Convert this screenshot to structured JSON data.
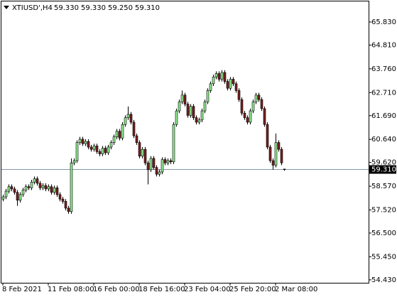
{
  "chart_data": {
    "type": "candlestick",
    "symbol": "XTIUSD',H4",
    "header_ohlc": [
      {
        "value": 59.33,
        "label": "59.330"
      },
      {
        "value": 59.33,
        "label": "59.330"
      },
      {
        "value": 59.25,
        "label": "59.250"
      },
      {
        "value": 59.31,
        "label": "59.310"
      }
    ],
    "current_price": {
      "value": 59.31,
      "label": "59.310"
    },
    "categories": [
      "8 Feb 2021",
      null,
      null,
      null,
      null,
      null,
      null,
      null,
      null,
      null,
      null,
      null,
      null,
      null,
      null,
      null,
      "11 Feb 08:00",
      null,
      null,
      null,
      null,
      null,
      null,
      null,
      null,
      null,
      null,
      null,
      null,
      null,
      null,
      null,
      "16 Feb 00:00",
      null,
      null,
      null,
      null,
      null,
      null,
      null,
      null,
      null,
      null,
      null,
      null,
      null,
      null,
      null,
      "18 Feb 16:00",
      null,
      null,
      null,
      null,
      null,
      null,
      null,
      null,
      null,
      null,
      null,
      null,
      null,
      null,
      null,
      "23 Feb 04:00",
      null,
      null,
      null,
      null,
      null,
      null,
      null,
      null,
      null,
      null,
      null,
      null,
      null,
      null,
      null,
      "25 Feb 20:00",
      null,
      null,
      null,
      null,
      null,
      null,
      null,
      null,
      null,
      null,
      null,
      null,
      null,
      null,
      null,
      "2 Mar 08:00",
      null,
      null,
      null
    ],
    "open": [
      58.0,
      58.1,
      58.35,
      58.55,
      58.45,
      58.3,
      57.95,
      58.2,
      58.4,
      58.55,
      58.5,
      58.75,
      58.9,
      58.7,
      58.5,
      58.6,
      58.45,
      58.55,
      58.3,
      58.5,
      58.2,
      58.0,
      57.9,
      57.6,
      57.45,
      59.6,
      59.7,
      60.5,
      60.65,
      60.45,
      60.55,
      60.3,
      60.2,
      60.35,
      60.1,
      60.0,
      60.25,
      60.05,
      60.3,
      60.5,
      60.75,
      61.0,
      60.7,
      61.3,
      61.6,
      61.75,
      61.4,
      60.8,
      60.5,
      59.9,
      60.2,
      59.6,
      59.3,
      59.8,
      59.4,
      59.1,
      59.2,
      59.75,
      59.6,
      59.7,
      59.65,
      61.3,
      61.9,
      62.3,
      62.6,
      62.2,
      61.7,
      62.1,
      61.6,
      61.4,
      61.5,
      61.9,
      62.3,
      62.8,
      63.1,
      63.4,
      63.55,
      63.3,
      63.6,
      63.2,
      62.9,
      63.3,
      63.1,
      62.8,
      62.4,
      61.8,
      61.6,
      61.4,
      61.9,
      62.3,
      62.6,
      62.4,
      62.0,
      61.3,
      60.3,
      59.7,
      59.5,
      60.5,
      60.2,
      59.33
    ],
    "high": [
      58.2,
      58.45,
      58.65,
      58.65,
      58.55,
      58.4,
      58.3,
      58.5,
      58.65,
      58.65,
      58.85,
      59.0,
      59.0,
      58.8,
      58.7,
      58.7,
      58.65,
      58.65,
      58.6,
      58.6,
      58.3,
      58.1,
      58.0,
      57.7,
      59.8,
      59.8,
      60.6,
      60.75,
      60.75,
      60.65,
      60.65,
      60.4,
      60.45,
      60.45,
      60.2,
      60.35,
      60.35,
      60.4,
      60.6,
      60.85,
      61.1,
      61.1,
      61.4,
      61.7,
      62.1,
      61.85,
      61.5,
      60.9,
      60.6,
      60.3,
      60.3,
      59.7,
      59.9,
      59.9,
      59.5,
      59.3,
      59.85,
      59.85,
      59.8,
      59.8,
      61.4,
      62.0,
      62.4,
      62.8,
      62.7,
      62.3,
      62.2,
      62.2,
      61.7,
      61.6,
      62.0,
      62.4,
      62.9,
      63.2,
      63.5,
      63.65,
      63.65,
      63.7,
      63.7,
      63.3,
      63.4,
      63.4,
      63.2,
      62.9,
      62.5,
      61.9,
      61.7,
      62.0,
      62.4,
      62.7,
      62.7,
      62.5,
      62.1,
      61.4,
      60.4,
      59.8,
      60.9,
      60.6,
      60.3,
      59.33
    ],
    "low": [
      57.9,
      58.0,
      58.25,
      58.35,
      58.2,
      57.7,
      57.85,
      58.1,
      58.3,
      58.4,
      58.4,
      58.65,
      58.6,
      58.4,
      58.4,
      58.35,
      58.35,
      58.2,
      58.2,
      58.1,
      57.9,
      57.8,
      57.5,
      57.35,
      57.35,
      59.5,
      59.6,
      60.4,
      60.35,
      60.35,
      60.2,
      60.1,
      60.1,
      60.0,
      59.9,
      59.9,
      59.95,
      59.95,
      60.2,
      60.4,
      60.65,
      60.6,
      60.6,
      61.2,
      61.5,
      61.3,
      60.7,
      60.4,
      59.8,
      59.8,
      59.5,
      58.65,
      59.2,
      59.3,
      59.0,
      59.0,
      59.1,
      59.5,
      59.5,
      59.55,
      59.55,
      61.2,
      61.8,
      62.2,
      62.1,
      61.6,
      61.6,
      61.5,
      61.3,
      61.3,
      61.4,
      61.8,
      62.2,
      62.7,
      63.0,
      63.3,
      63.2,
      63.2,
      63.1,
      62.8,
      62.8,
      63.0,
      62.7,
      62.3,
      61.7,
      61.5,
      61.3,
      61.3,
      61.8,
      62.2,
      62.3,
      61.9,
      61.2,
      60.2,
      59.6,
      59.3,
      59.4,
      60.1,
      59.5,
      59.25
    ],
    "close": [
      58.1,
      58.35,
      58.55,
      58.45,
      58.3,
      57.95,
      58.2,
      58.4,
      58.55,
      58.5,
      58.75,
      58.9,
      58.7,
      58.5,
      58.6,
      58.45,
      58.55,
      58.3,
      58.5,
      58.2,
      58.0,
      57.9,
      57.6,
      57.45,
      59.6,
      59.7,
      60.5,
      60.65,
      60.45,
      60.55,
      60.3,
      60.2,
      60.35,
      60.1,
      60.0,
      60.25,
      60.05,
      60.3,
      60.5,
      60.75,
      61.0,
      60.7,
      61.3,
      61.6,
      61.75,
      61.4,
      60.8,
      60.5,
      59.9,
      60.2,
      59.6,
      59.3,
      59.8,
      59.4,
      59.1,
      59.2,
      59.75,
      59.6,
      59.7,
      59.65,
      61.3,
      61.9,
      62.3,
      62.6,
      62.2,
      61.7,
      62.1,
      61.6,
      61.4,
      61.5,
      61.9,
      62.3,
      62.8,
      63.1,
      63.4,
      63.55,
      63.3,
      63.6,
      63.2,
      62.9,
      63.3,
      63.1,
      62.8,
      62.4,
      61.8,
      61.6,
      61.4,
      61.9,
      62.3,
      62.6,
      62.4,
      62.0,
      61.3,
      60.3,
      59.7,
      59.5,
      60.5,
      60.2,
      59.6,
      59.31
    ],
    "up_color": "#90ee90",
    "down_color": "#7a1f1f",
    "wick_color": "#000000",
    "price_line_color": "#8496a8",
    "ylim": [
      54.3,
      66.74
    ],
    "yticks": [
      {
        "value": 54.43,
        "label": "54.430"
      },
      {
        "value": 55.45,
        "label": "55.450"
      },
      {
        "value": 56.5,
        "label": "56.500"
      },
      {
        "value": 57.52,
        "label": "57.520"
      },
      {
        "value": 58.57,
        "label": "58.570"
      },
      {
        "value": 59.62,
        "label": "59.620"
      },
      {
        "value": 60.64,
        "label": "60.640"
      },
      {
        "value": 61.69,
        "label": "61.690"
      },
      {
        "value": 62.71,
        "label": "62.710"
      },
      {
        "value": 63.76,
        "label": "63.760"
      },
      {
        "value": 64.81,
        "label": "64.810"
      },
      {
        "value": 65.83,
        "label": "65.830"
      }
    ],
    "grid": false
  }
}
